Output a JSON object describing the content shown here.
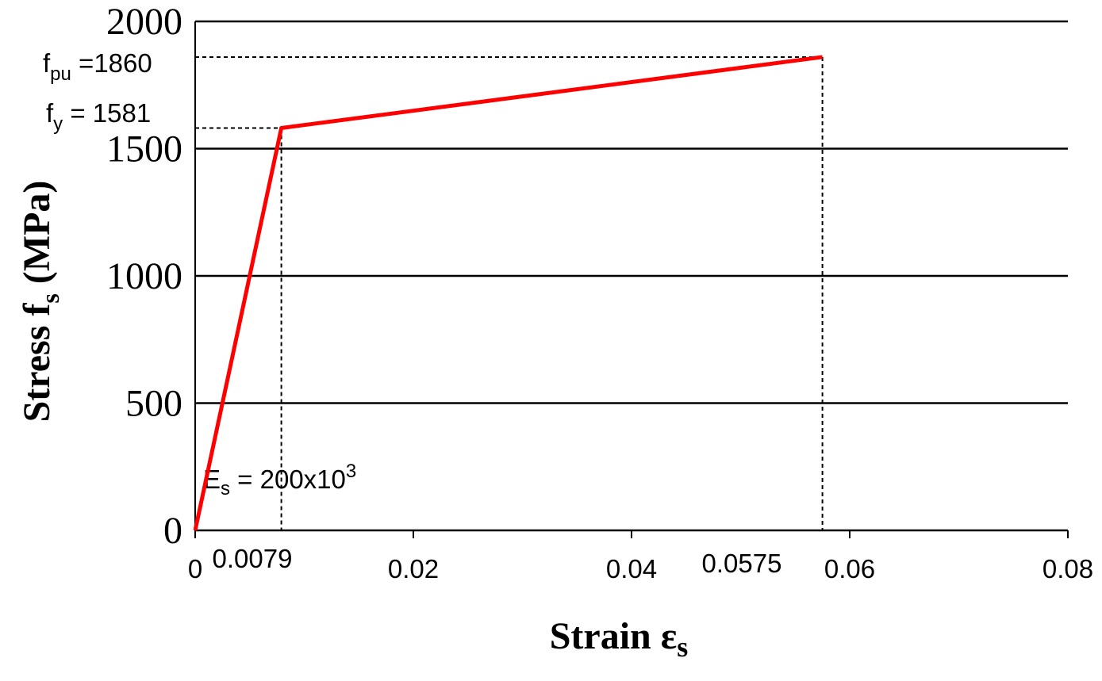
{
  "chart_data": {
    "type": "line",
    "x": [
      0,
      0.0079,
      0.0575
    ],
    "values": [
      0,
      1581,
      1860
    ],
    "color": "#ff0000",
    "xlim": [
      0,
      0.08
    ],
    "xticks": [
      0,
      0.02,
      0.04,
      0.06,
      0.08
    ],
    "ylim": [
      0,
      2000
    ],
    "yticks": [
      0,
      500,
      1000,
      1500,
      2000
    ],
    "grid": true,
    "xlabel": {
      "main": "Strain ε",
      "sub": "s"
    },
    "ylabel": {
      "main": "Stress f",
      "sub": "s",
      "unit": " (MPa)"
    },
    "annotations": {
      "fpu": {
        "main": "f",
        "sub": "pu",
        "tail": " =1860"
      },
      "fy": {
        "main": "f",
        "sub": "y",
        "tail": " = 1581"
      },
      "es": {
        "main": "E",
        "sub": "s",
        "tail": " = 200x10",
        "sup": "3"
      },
      "strain_yield": "0.0079",
      "strain_ultimate": "0.0575"
    }
  }
}
